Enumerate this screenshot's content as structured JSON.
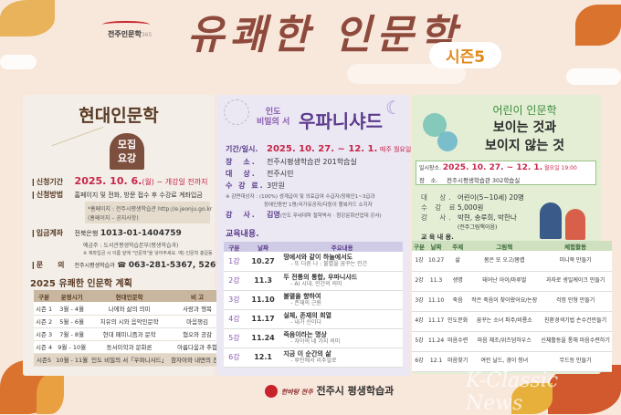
{
  "header": {
    "logo_text": "전주인문학",
    "logo_sub": "365",
    "title": "유쾌한 인문학",
    "season": "시즌5"
  },
  "left": {
    "title": "현대인문학",
    "badge_line1": "모집",
    "badge_line2": "요강",
    "apply_period_label": "신청기간",
    "apply_period_value": "2025. 10. 6.",
    "apply_period_day": "(월)",
    "apply_period_tail": "~ 개강일 전까지",
    "apply_method_label": "신청방법",
    "apply_method_value": "홈페이지 및 전화, 방문 접수 후 수강료 계좌입금",
    "homepage_note1": "*홈페이지 : 전주시평생학습관 http://e.jeonju.go.kr",
    "homepage_note2": "(홈페이지 – 공지사항)",
    "account_label": "입금계좌",
    "account_bank": "전북은행",
    "account_number": "1013-01-1404759",
    "account_holder": "예금주 : 도서관평생학습본부(평생학습과)",
    "account_note": "※ 계좌입금 시 이름 앞에 \"인문학\"을 넣어주세요. 예) 인문학 홍길동",
    "contact_label": "문　　의",
    "contact_org": "전주시평생학습과",
    "contact_phone": "063-281-5367, 5269",
    "plan_title": "2025 유쾌한 인문학 계획",
    "plan_headers": [
      "구분",
      "운영시기",
      "현대인문학",
      "비 고"
    ],
    "plan_rows": [
      [
        "시즌 1",
        "3월 - 4월",
        "나에와 삶의 의미",
        "사랑과 행복"
      ],
      [
        "시즌 2",
        "5월 - 6월",
        "치유의 시와 음악인문학",
        "마음챙김"
      ],
      [
        "시즌 3",
        "7월 - 8월",
        "현대 페미니즘과 문학",
        "혐오와 공감"
      ],
      [
        "시즌 4",
        "9월 - 10월",
        "동서미학과 문화론",
        "아름다움과 추함"
      ],
      [
        "시즌5",
        "10월 - 11월",
        "인도 비밀의 서「우파니샤드」",
        "참자아와 내면의 진리"
      ]
    ]
  },
  "middle": {
    "subtitle1": "인도",
    "subtitle2": "비밀의 서",
    "title": "우파니샤드",
    "period_label": "기간/일시.",
    "period_value": "2025. 10. 27. ~ 12. 1.",
    "period_tail": "매주 월요일 19:00",
    "place_label": "장　소.",
    "place_value": "전주시평생학습관 201학습실",
    "target_label": "대　상.",
    "target_value": "전주시민",
    "fee_label": "수 강 료.",
    "fee_value": "3만원",
    "discount_note1": "※ 감면대상자 : (100%) 생계급여 및 의료급여 수급자/장애인1~3급과",
    "discount_note2": "장애인동반 1명/국가유공자/다둥이 행복카드 소지자",
    "lecturer_label": "강　사.",
    "lecturer_name": "김영",
    "lecturer_desc": "(인도 푸네대학 철학박사 · 청강문화산업대 강사)",
    "content_title": "교육내용.",
    "table_headers": [
      "구분",
      "날짜",
      "주요내용"
    ],
    "table_rows": [
      [
        "1강",
        "10.27",
        "땅에서와 같이 하늘에서도",
        "- 또 다른 나 : 불멸을 꿈꾸는 인간"
      ],
      [
        "2강",
        "11.3",
        "두 전통의 통합, 우파니샤드",
        "- AI 시대, 인간의 의미"
      ],
      [
        "3강",
        "11.10",
        "불멸을 향하여",
        "- 존재의 근원"
      ],
      [
        "4강",
        "11.17",
        "실체, 존재의 희열",
        "- 내가 신이다"
      ],
      [
        "5강",
        "11.24",
        "죽음이라는 명상",
        "- 자아의 네 가지 의미"
      ],
      [
        "6강",
        "12.1",
        "지금 이 순간의 삶",
        "- 루틴에서 리추얼로"
      ]
    ]
  },
  "right": {
    "subtitle": "어린이 인문학",
    "title1": "보이는 것과",
    "title2": "보이지 않는 것",
    "datetime_label": "일시장소.",
    "datetime_value": "2025. 10. 27. ~ 12. 1.",
    "datetime_tail": "월요일 19:00",
    "place_label": "장　소.",
    "place_value": "전주시평생학습관 302학습실",
    "target_label": "대　상.",
    "target_value": "어린이(5~10세) 20명",
    "fee_label": "수 강 료.",
    "fee_value": "5,000원",
    "lecturer_label": "강　사.",
    "lecturer_value": "박현, 송루희, 박한나",
    "lecturer_org": "(전주그림책이음)",
    "content_title": "교 육 내 용.",
    "table_headers": [
      "구분",
      "날짜",
      "주제",
      "그림책",
      "체험활동"
    ],
    "table_rows": [
      [
        "1강",
        "10.27",
        "삶",
        "봄은 또 오고/봄랩",
        "미니북 만들기"
      ],
      [
        "2강",
        "11.3",
        "생명",
        "태어난 아이/마루벌",
        "과자로 생일케이크 만들기"
      ],
      [
        "3강",
        "11.10",
        "죽음",
        "작은 죽음이 찾아왔어요/논장",
        "걱정 인형 만들기"
      ],
      [
        "4강",
        "11.17",
        "인도문화",
        "꿈꾸는 소녀 파주/비룡소",
        "친환경색기법 손수건만들기"
      ],
      [
        "5강",
        "11.24",
        "마음수련",
        "마음 체조/위즈덤하우스",
        "신체활동을 통해 마음수련하기"
      ],
      [
        "6강",
        "12.1",
        "마음찾기",
        "여린 날드, 경이 청녀",
        "무드등 만들기"
      ]
    ]
  },
  "footer": {
    "slogan": "한바탕 전주",
    "org": "전주시 평생학습과"
  },
  "watermark": "K-Classic News",
  "colors": {
    "background": "#f8e7db",
    "title": "#8e4a3c",
    "season": "#e08a1c",
    "accent_red": "#c8254a",
    "purple": "#5b3a8c",
    "green": "#3a7a3a",
    "brown": "#5a3a24"
  }
}
